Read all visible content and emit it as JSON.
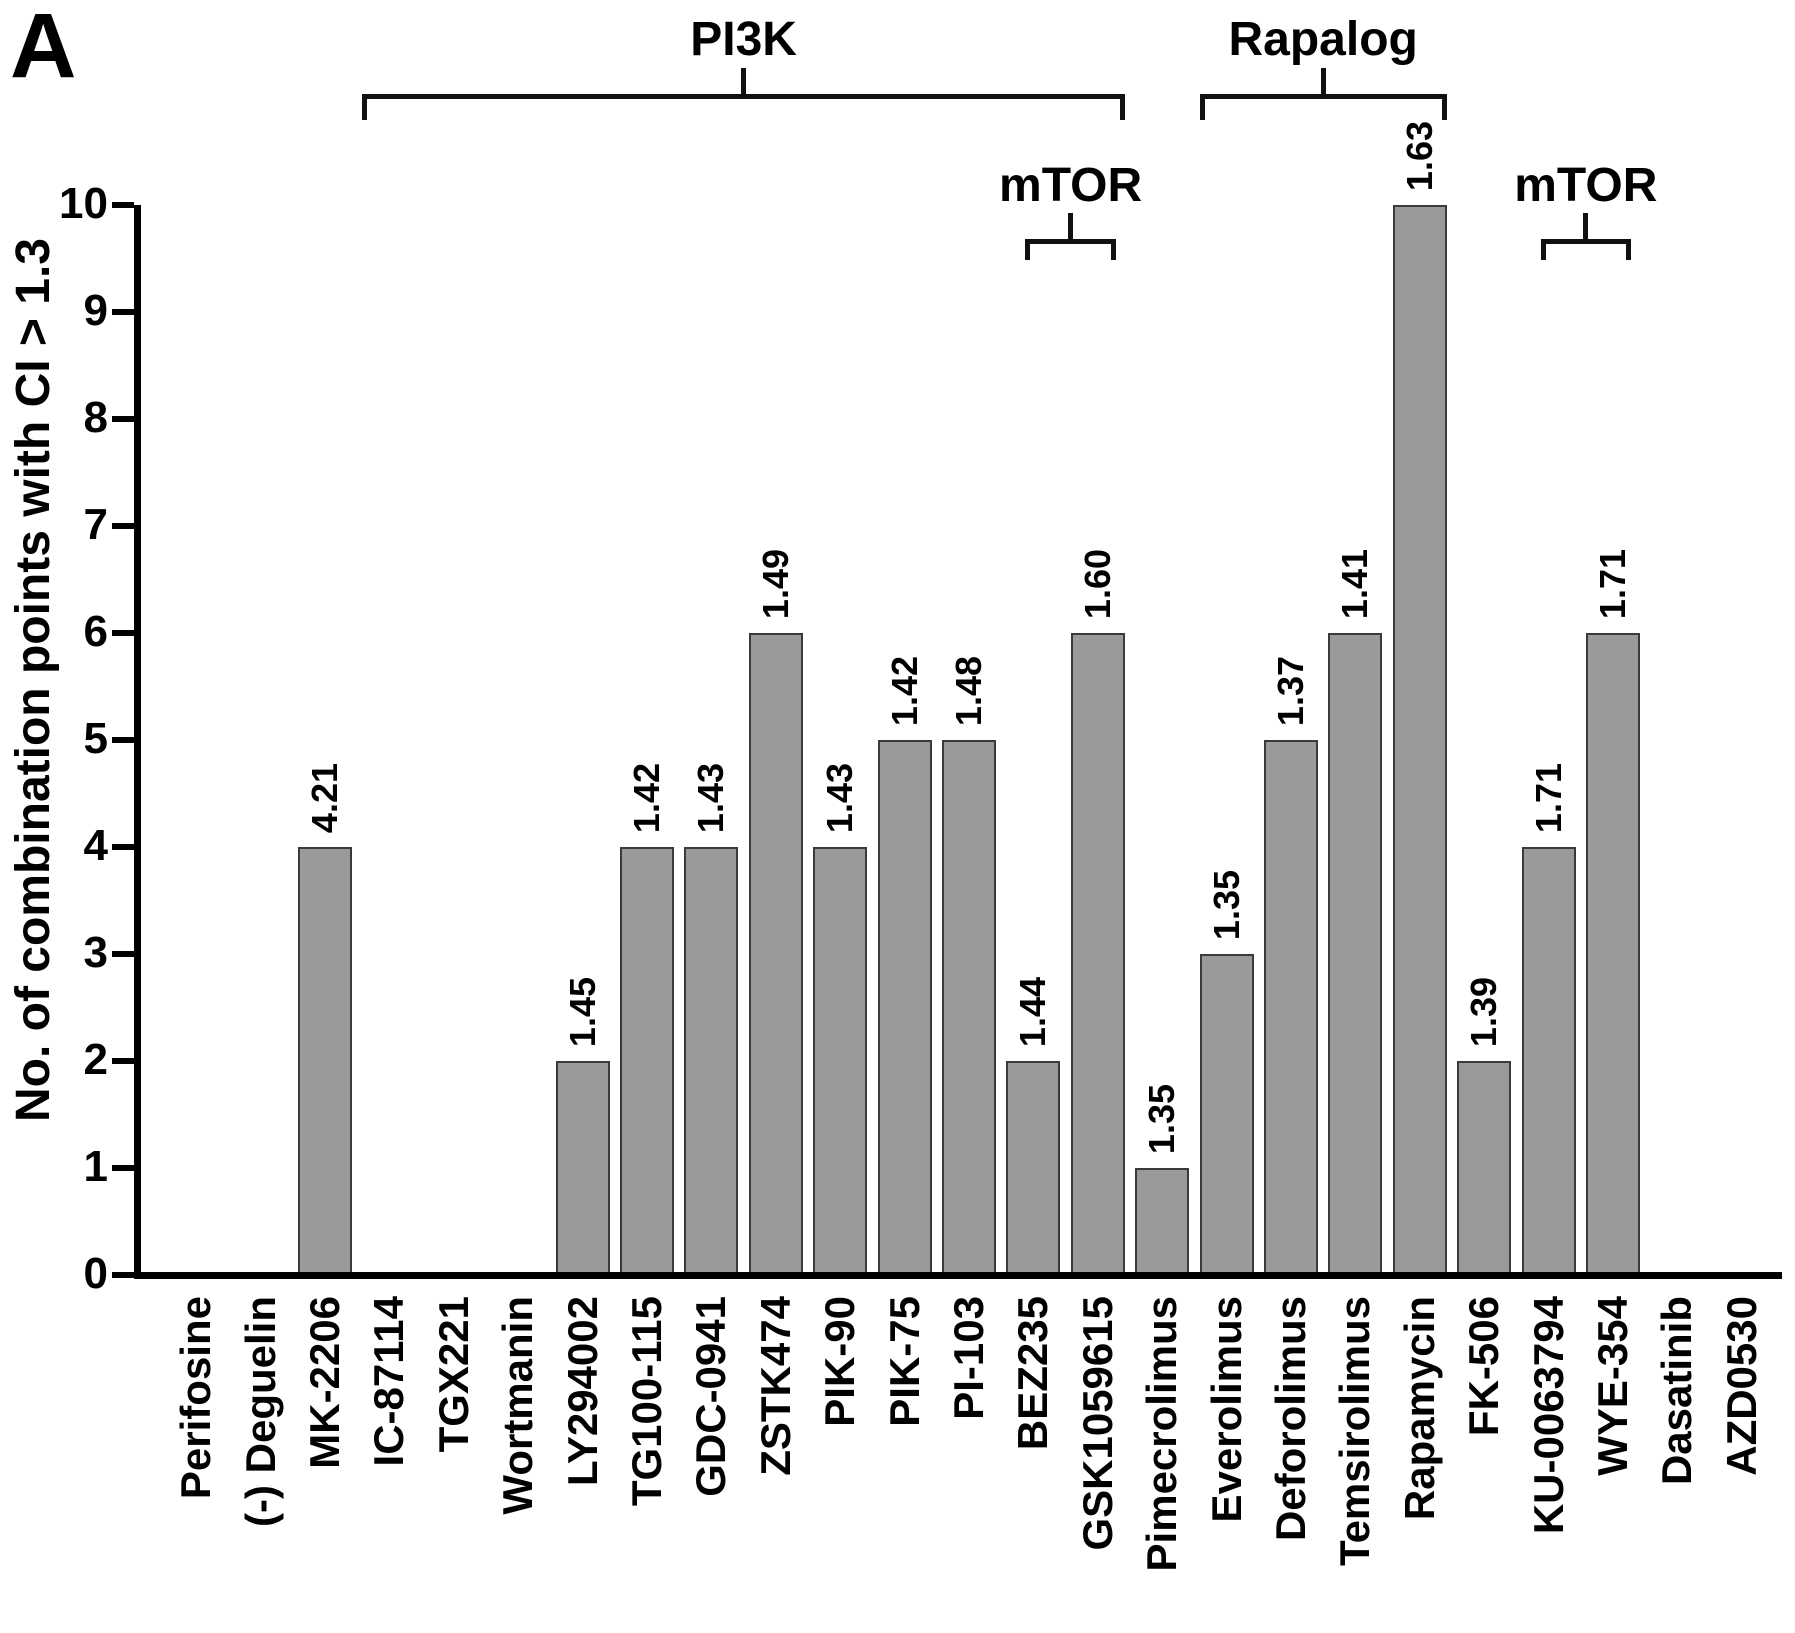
{
  "panel_label": "A",
  "chart_data": {
    "type": "bar",
    "title": "",
    "xlabel": "",
    "ylabel": "No. of combination points with CI > 1.3",
    "ylim": [
      0,
      10
    ],
    "ytick_interval": 1,
    "grid": false,
    "legend": "none",
    "bar_color": "#9a9a9a",
    "bar_border_color": "#3a3a3a",
    "axis_color": "#000000",
    "categories": [
      "Perifosine",
      "(-) Deguelin",
      "MK-2206",
      "IC-87114",
      "TGX221",
      "Wortmanin",
      "LY294002",
      "TG100-115",
      "GDC-0941",
      "ZSTK474",
      "PIK-90",
      "PIK-75",
      "PI-103",
      "BEZ235",
      "GSK1059615",
      "Pimecrolimus",
      "Everolimus",
      "Deforolimus",
      "Temsirolimus",
      "Rapamycin",
      "FK-506",
      "KU-0063794",
      "WYE-354",
      "Dasatinib",
      "AZD0530"
    ],
    "values": [
      0,
      0,
      4,
      0,
      0,
      0,
      2,
      4,
      4,
      6,
      4,
      5,
      5,
      2,
      6,
      1,
      3,
      5,
      6,
      10,
      2,
      4,
      6,
      0,
      0
    ],
    "bar_labels": [
      "",
      "",
      "4.21",
      "",
      "",
      "",
      "1.45",
      "1.42",
      "1.43",
      "1.49",
      "1.43",
      "1.42",
      "1.48",
      "1.44",
      "1.60",
      "1.35",
      "1.35",
      "1.37",
      "1.41",
      "1.63",
      "1.39",
      "1.71",
      "1.71",
      "",
      ""
    ],
    "groups": [
      {
        "label": "PI3K",
        "start": 3,
        "end": 14,
        "level": "top"
      },
      {
        "label": "Rapalog",
        "start": 16,
        "end": 19,
        "level": "top"
      },
      {
        "label": "mTOR",
        "start": 13,
        "end": 14,
        "level": "inner"
      },
      {
        "label": "mTOR",
        "start": 21,
        "end": 22,
        "level": "inner"
      }
    ]
  }
}
